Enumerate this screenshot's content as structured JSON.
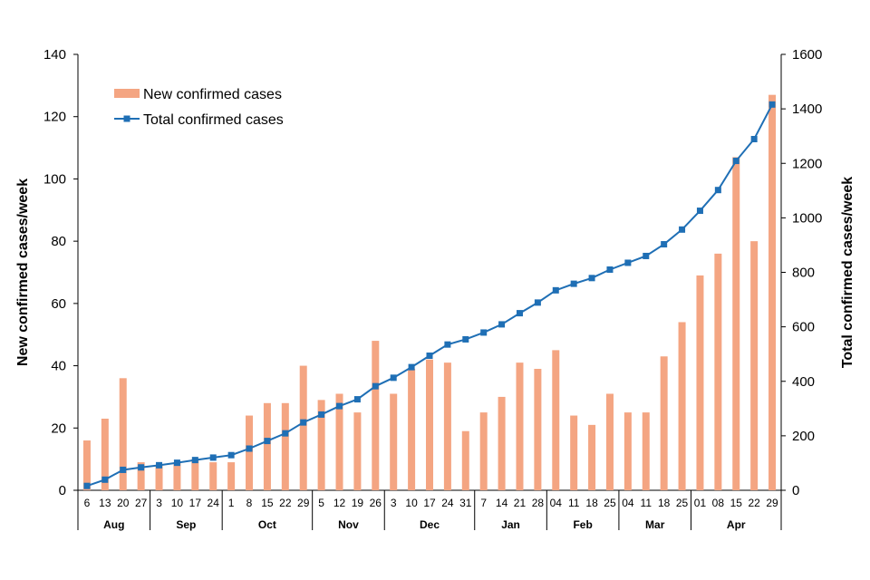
{
  "chart_data": {
    "type": "bar+line",
    "title": "",
    "ylabel_left": "New confirmed cases/week",
    "ylabel_right": "Total confirmed cases/week",
    "ylim_left": [
      0,
      140
    ],
    "ylim_right": [
      0,
      1600
    ],
    "yticks_left": [
      "0",
      "20",
      "40",
      "60",
      "80",
      "100",
      "120",
      "140"
    ],
    "yticks_right": [
      "0",
      "200",
      "400",
      "600",
      "800",
      "1000",
      "1200",
      "1400",
      "1600"
    ],
    "categories": [
      "6",
      "13",
      "20",
      "27",
      "3",
      "10",
      "17",
      "24",
      "1",
      "8",
      "15",
      "22",
      "29",
      "5",
      "12",
      "19",
      "26",
      "3",
      "10",
      "17",
      "24",
      "31",
      "7",
      "14",
      "21",
      "28",
      "04",
      "11",
      "18",
      "25",
      "04",
      "11",
      "18",
      "25",
      "01",
      "08",
      "15",
      "22",
      "29"
    ],
    "months": [
      {
        "label": "Aug",
        "start": 0,
        "count": 4
      },
      {
        "label": "Sep",
        "start": 4,
        "count": 4
      },
      {
        "label": "Oct",
        "start": 8,
        "count": 5
      },
      {
        "label": "Nov",
        "start": 13,
        "count": 4
      },
      {
        "label": "Dec",
        "start": 17,
        "count": 5
      },
      {
        "label": "Jan",
        "start": 22,
        "count": 4
      },
      {
        "label": "Feb",
        "start": 26,
        "count": 4
      },
      {
        "label": "Mar",
        "start": 30,
        "count": 4
      },
      {
        "label": "Apr",
        "start": 34,
        "count": 5
      }
    ],
    "series": [
      {
        "name": "New confirmed cases",
        "type": "bar",
        "axis": "left",
        "color": "#f4a582",
        "values": [
          16,
          23,
          36,
          9,
          8,
          9,
          10,
          9,
          9,
          24,
          28,
          28,
          40,
          29,
          31,
          25,
          48,
          31,
          39,
          42,
          41,
          19,
          25,
          30,
          41,
          39,
          45,
          24,
          21,
          31,
          25,
          25,
          43,
          54,
          69,
          76,
          107,
          80,
          127
        ]
      },
      {
        "name": "Total confirmed cases",
        "type": "line",
        "axis": "right",
        "color": "#1f6fb5",
        "values": [
          16,
          39,
          75,
          84,
          92,
          101,
          111,
          120,
          129,
          153,
          181,
          209,
          249,
          278,
          309,
          334,
          382,
          413,
          452,
          494,
          535,
          554,
          579,
          609,
          650,
          689,
          734,
          758,
          779,
          810,
          835,
          860,
          903,
          957,
          1026,
          1102,
          1209,
          1289,
          1416
        ]
      }
    ],
    "legend": {
      "placement": "top-left",
      "entries": [
        "New confirmed cases",
        "Total confirmed cases"
      ]
    }
  }
}
